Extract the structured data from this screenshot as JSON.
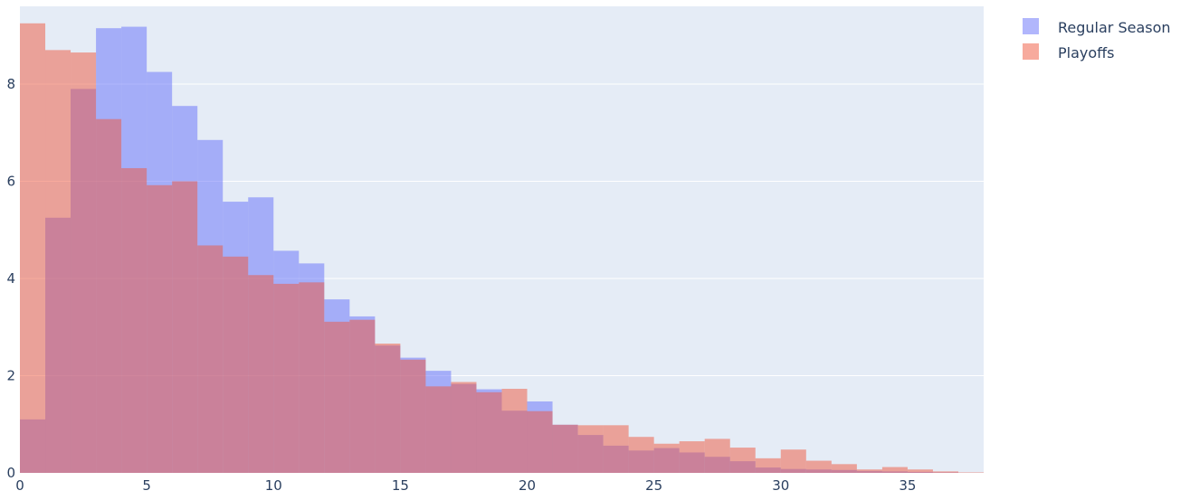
{
  "chart_data": {
    "type": "histogram",
    "bin_width": 1,
    "xlim": [
      0,
      38
    ],
    "ylim": [
      0,
      9.6
    ],
    "xticks": [
      0,
      5,
      10,
      15,
      20,
      25,
      30,
      35
    ],
    "yticks": [
      0,
      2,
      4,
      6,
      8
    ],
    "grid": true,
    "legend_position": "top-right",
    "colors": {
      "plot_bg": "#e5ecf6",
      "grid": "#ffffff",
      "regular": "#636efa",
      "playoffs": "#ef553b",
      "text": "#2a3f5f"
    },
    "series": [
      {
        "name": "Regular Season",
        "color": "#636efa",
        "values": [
          1.1,
          5.25,
          7.9,
          9.15,
          9.18,
          8.25,
          7.55,
          6.85,
          5.58,
          5.67,
          4.57,
          4.31,
          3.57,
          3.22,
          2.62,
          2.37,
          2.1,
          1.83,
          1.72,
          1.28,
          1.47,
          0.99,
          0.78,
          0.56,
          0.46,
          0.51,
          0.42,
          0.33,
          0.24,
          0.11,
          0.08,
          0.07,
          0.06,
          0.04,
          0.03,
          0.02,
          0.01,
          0.0
        ]
      },
      {
        "name": "Playoffs",
        "color": "#ef553b",
        "values": [
          9.25,
          8.7,
          8.65,
          7.28,
          6.27,
          5.92,
          6.0,
          4.68,
          4.45,
          4.07,
          3.89,
          3.92,
          3.11,
          3.15,
          2.66,
          2.33,
          1.78,
          1.87,
          1.66,
          1.73,
          1.27,
          0.99,
          0.98,
          0.98,
          0.74,
          0.6,
          0.65,
          0.7,
          0.52,
          0.3,
          0.48,
          0.25,
          0.18,
          0.07,
          0.12,
          0.07,
          0.03,
          0.01
        ]
      }
    ]
  }
}
